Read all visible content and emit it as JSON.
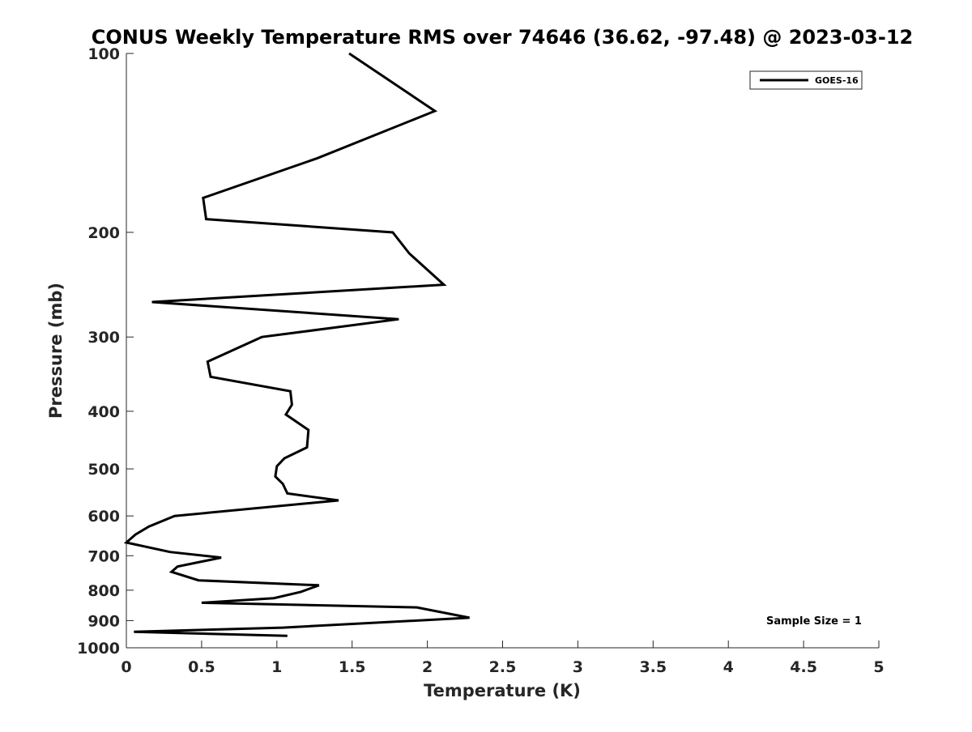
{
  "chart_data": {
    "type": "line",
    "title": "CONUS Weekly Temperature RMS over 74646 (36.62, -97.48) @ 2023-03-12",
    "xlabel": "Temperature (K)",
    "ylabel": "Pressure (mb)",
    "xlim": [
      0,
      5
    ],
    "ylim": [
      100,
      1000
    ],
    "y_scale": "log",
    "y_reversed": true,
    "x_ticks": [
      0,
      0.5,
      1,
      1.5,
      2,
      2.5,
      3,
      3.5,
      4,
      4.5,
      5
    ],
    "x_tick_labels": [
      "0",
      "0.5",
      "1",
      "1.5",
      "2",
      "2.5",
      "3",
      "3.5",
      "4",
      "4.5",
      "5"
    ],
    "y_ticks": [
      100,
      200,
      300,
      400,
      500,
      600,
      700,
      800,
      900,
      1000
    ],
    "y_tick_labels": [
      "100",
      "200",
      "300",
      "400",
      "500",
      "600",
      "700",
      "800",
      "900",
      "1000"
    ],
    "grid": false,
    "legend_position": "top-right",
    "annotation": "Sample Size = 1",
    "series": [
      {
        "name": "GOES-16",
        "color": "#000000",
        "points": [
          [
            1.48,
            100
          ],
          [
            2.05,
            125
          ],
          [
            1.27,
            150
          ],
          [
            0.51,
            175
          ],
          [
            0.53,
            190
          ],
          [
            1.77,
            200
          ],
          [
            1.88,
            217
          ],
          [
            2.11,
            245
          ],
          [
            0.17,
            262
          ],
          [
            1.81,
            280
          ],
          [
            0.9,
            300
          ],
          [
            0.54,
            330
          ],
          [
            0.56,
            350
          ],
          [
            1.09,
            370
          ],
          [
            1.1,
            390
          ],
          [
            1.06,
            405
          ],
          [
            1.21,
            430
          ],
          [
            1.2,
            460
          ],
          [
            1.05,
            480
          ],
          [
            1.0,
            495
          ],
          [
            0.99,
            515
          ],
          [
            1.04,
            530
          ],
          [
            1.07,
            550
          ],
          [
            1.41,
            565
          ],
          [
            0.32,
            600
          ],
          [
            0.15,
            625
          ],
          [
            0.06,
            645
          ],
          [
            0.0,
            665
          ],
          [
            0.29,
            690
          ],
          [
            0.63,
            705
          ],
          [
            0.34,
            730
          ],
          [
            0.3,
            745
          ],
          [
            0.48,
            770
          ],
          [
            1.28,
            785
          ],
          [
            1.16,
            805
          ],
          [
            0.98,
            825
          ],
          [
            0.5,
            840
          ],
          [
            1.93,
            855
          ],
          [
            2.28,
            890
          ],
          [
            1.04,
            925
          ],
          [
            0.05,
            940
          ],
          [
            1.07,
            955
          ]
        ]
      }
    ]
  }
}
